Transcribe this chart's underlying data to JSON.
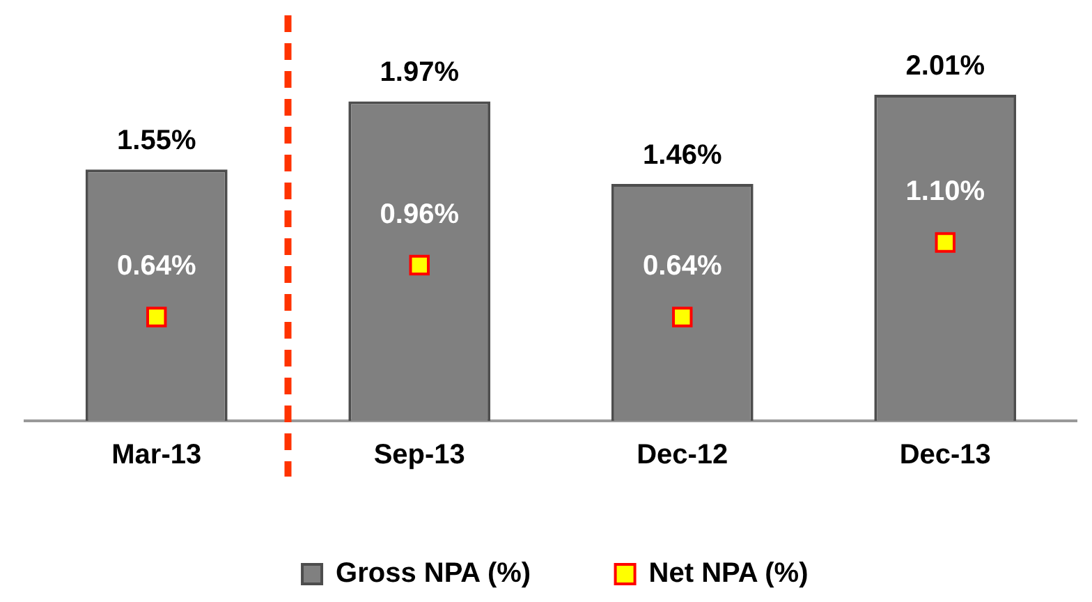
{
  "chart_data": {
    "type": "bar",
    "categories": [
      "Mar-13",
      "Sep-13",
      "Dec-12",
      "Dec-13"
    ],
    "series": [
      {
        "name": "Gross NPA (%)",
        "color": "#808080",
        "values": [
          1.55,
          1.97,
          1.46,
          2.01
        ],
        "value_labels": [
          "1.55%",
          "1.97%",
          "1.46%",
          "2.01%"
        ]
      },
      {
        "name": "Net NPA (%)",
        "type": "scatter",
        "color": "#ffff00",
        "values": [
          0.64,
          0.96,
          0.64,
          1.1
        ],
        "value_labels": [
          "0.64%",
          "0.96%",
          "0.64%",
          "1.10%"
        ]
      }
    ],
    "tick_labels": "x",
    "grid": false,
    "legend": "bottom",
    "marker": "square"
  }
}
